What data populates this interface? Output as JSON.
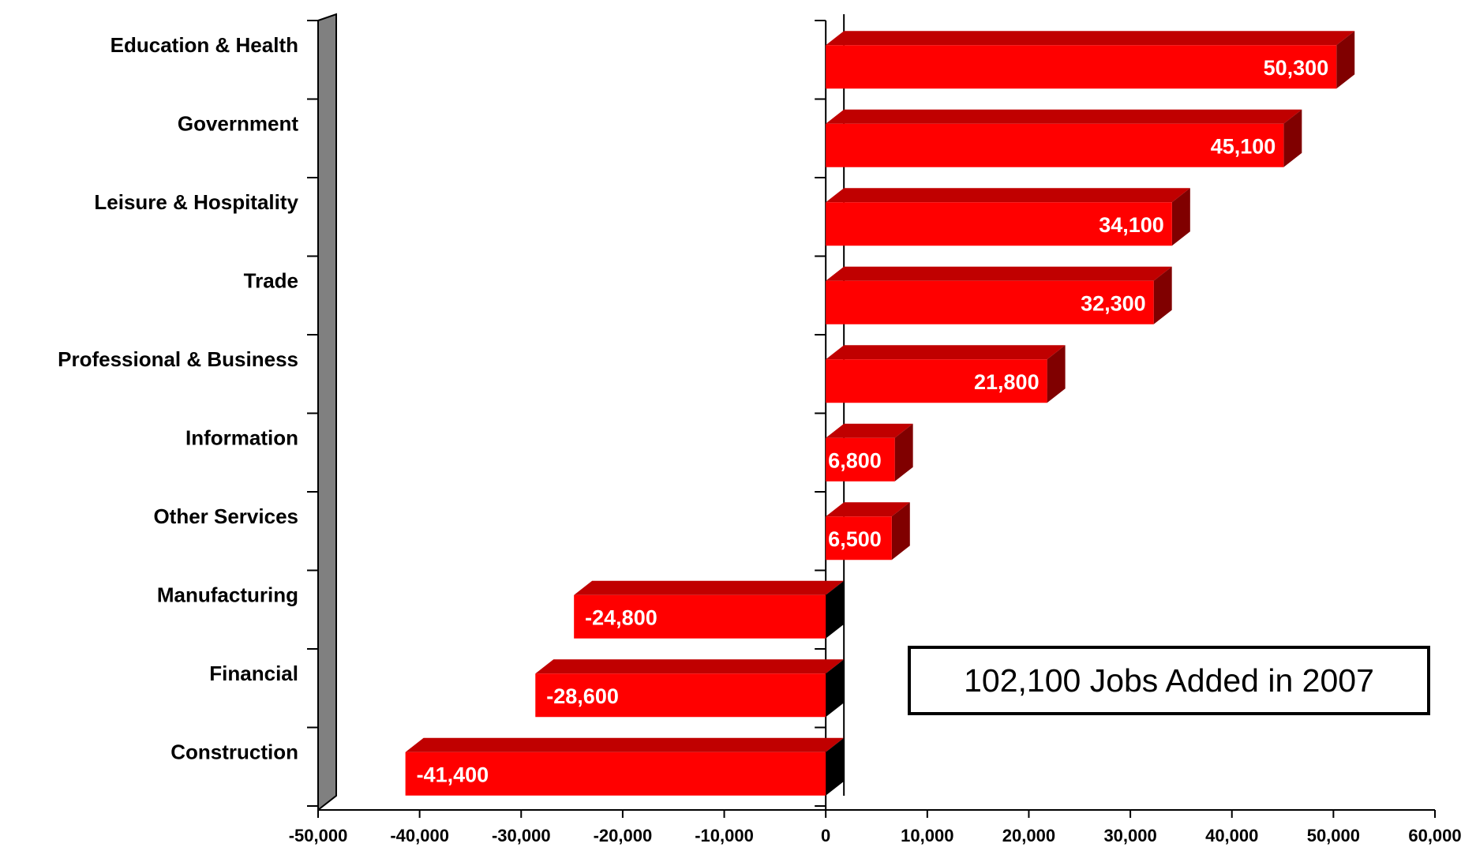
{
  "chart_data": {
    "type": "bar",
    "orientation": "horizontal",
    "categories": [
      "Education & Health",
      "Government",
      "Leisure & Hospitality",
      "Trade",
      "Professional & Business",
      "Information",
      "Other Services",
      "Manufacturing",
      "Financial",
      "Construction"
    ],
    "values": [
      50300,
      45100,
      34100,
      32300,
      21800,
      6800,
      6500,
      -24800,
      -28600,
      -41400
    ],
    "data_labels": [
      "50,300",
      "45,100",
      "34,100",
      "32,300",
      "21,800",
      "6,800",
      "6,500",
      "-24,800",
      "-28,600",
      "-41,400"
    ],
    "xlim": [
      -50000,
      60000
    ],
    "x_ticks": [
      -50000,
      -40000,
      -30000,
      -20000,
      -10000,
      0,
      10000,
      20000,
      30000,
      40000,
      50000,
      60000
    ],
    "x_tick_labels": [
      "-50,000",
      "-40,000",
      "-30,000",
      "-20,000",
      "-10,000",
      "0",
      "10,000",
      "20,000",
      "30,000",
      "40,000",
      "50,000",
      "60,000"
    ],
    "title": "",
    "xlabel": "",
    "ylabel": "",
    "grid": false,
    "style": "3d",
    "annotation": "102,100 Jobs Added in 2007",
    "colors": {
      "bar_front": "#ff0000",
      "bar_top": "#c00000",
      "bar_side": "#800000",
      "wall": "#808080",
      "zero_side": "#000000"
    }
  }
}
